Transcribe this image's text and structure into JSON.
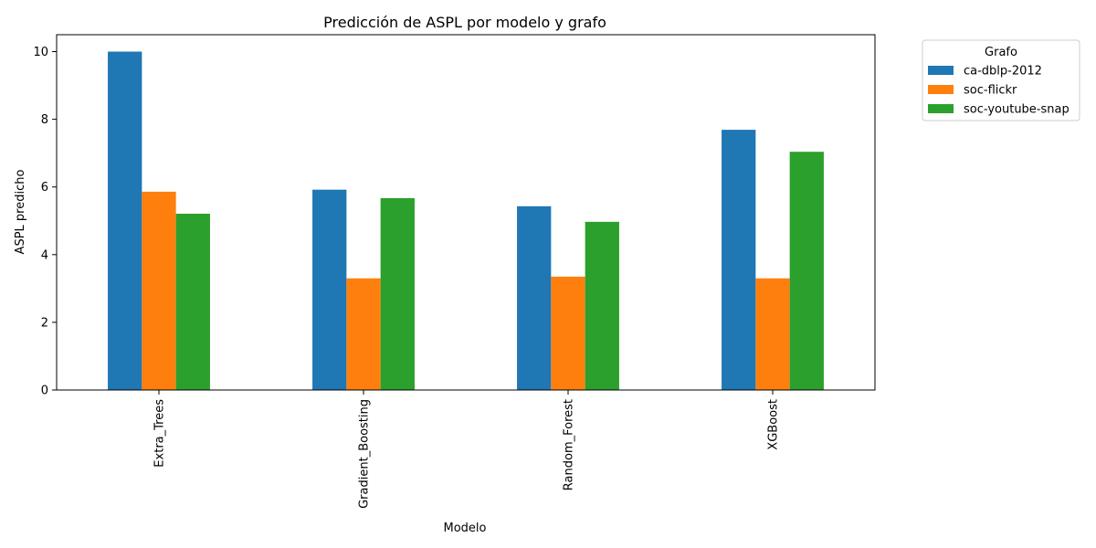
{
  "chart_data": {
    "type": "bar",
    "title": "Predicción de ASPL por modelo y grafo",
    "xlabel": "Modelo",
    "ylabel": "ASPL predicho",
    "categories": [
      "Extra_Trees",
      "Gradient_Boosting",
      "Random_Forest",
      "XGBoost"
    ],
    "series": [
      {
        "name": "ca-dblp-2012",
        "color": "#1f77b4",
        "values": [
          10.0,
          5.92,
          5.43,
          7.69
        ]
      },
      {
        "name": "soc-flickr",
        "color": "#ff7f0e",
        "values": [
          5.86,
          3.3,
          3.35,
          3.3
        ]
      },
      {
        "name": "soc-youtube-snap",
        "color": "#2ca02c",
        "values": [
          5.21,
          5.67,
          4.97,
          7.04
        ]
      }
    ],
    "ylim": [
      0,
      10.5
    ],
    "yticks": [
      0,
      2,
      4,
      6,
      8,
      10
    ],
    "legend": {
      "title": "Grafo",
      "placement": "outside-top-right"
    },
    "grid": false
  }
}
